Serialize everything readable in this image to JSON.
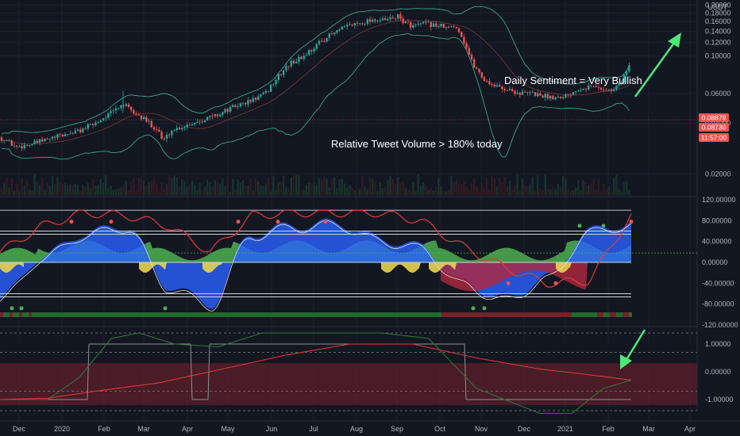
{
  "currency": "USDT",
  "price_badges": [
    {
      "label": "0.08879",
      "color": "#ef5350"
    },
    {
      "label": "0.08730",
      "color": "#ef5350"
    },
    {
      "label": "11:57:00",
      "color": "#ef5350"
    }
  ],
  "annotations": {
    "sentiment": "Daily Sentiment = Very Bullish",
    "tweets": "Relative Tweet Volume > 180% today"
  },
  "colors": {
    "background": "#131722",
    "up": "#26a69a",
    "down": "#ef5350",
    "band": "#3aa38c",
    "arrow": "#4ee77a",
    "osc_blue": "#2962ff",
    "osc_green": "#4caf50",
    "osc_yellow": "#e8d44d",
    "osc_red": "#b2283e"
  },
  "time_axis": [
    "Dec",
    "2020",
    "Feb",
    "Mar",
    "Apr",
    "May",
    "Jun",
    "Jul",
    "Aug",
    "Sep",
    "Oct",
    "Nov",
    "Dec",
    "2021",
    "Feb",
    "Mar",
    "Apr"
  ],
  "chart_data": [
    {
      "type": "line",
      "title": "",
      "y_scale": "log",
      "y_ticks": [
        "0.20000",
        "0.18000",
        "0.16000",
        "0.14000",
        "0.12000",
        "0.10000",
        "0.06000",
        "0.04000",
        "0.02000"
      ],
      "ylim": [
        0.015,
        0.21
      ],
      "x": [
        "Dec",
        "2020",
        "Feb",
        "Mar",
        "Apr",
        "May",
        "Jun",
        "Jul",
        "Aug",
        "Sep",
        "Oct",
        "Nov",
        "Dec",
        "2021",
        "Feb"
      ],
      "series": [
        {
          "values": [
            0.032,
            0.03,
            0.04,
            0.055,
            0.035,
            0.042,
            0.05,
            0.08,
            0.11,
            0.16,
            0.175,
            0.16,
            0.12,
            0.07,
            0.065
          ]
        }
      ],
      "last_price": 0.08879,
      "second_price": 0.0873
    },
    {
      "type": "area",
      "title": "",
      "y_ticks": [
        "120.00000",
        "80.00000",
        "40.00000",
        "0.00000",
        "-40.00000",
        "-80.00000",
        "-120.00000"
      ],
      "ylim": [
        -120,
        120
      ],
      "levels": [
        100,
        60,
        0,
        -60
      ],
      "series": [
        {
          "values": [
            -70,
            10,
            55,
            70,
            -45,
            -80,
            55,
            70,
            75,
            45,
            30,
            -40,
            -70,
            -30,
            60,
            75
          ]
        },
        {
          "values": [
            20,
            70,
            95,
            90,
            70,
            20,
            90,
            95,
            95,
            95,
            80,
            30,
            -10,
            -40,
            -35,
            90
          ]
        }
      ]
    },
    {
      "type": "line",
      "title": "",
      "y_ticks": [
        "1.00000",
        "0.00000",
        "-1.00000"
      ],
      "ylim": [
        -1.4,
        1.4
      ],
      "series": [
        {
          "values": [
            -1.0,
            -1.0,
            1.0,
            1.0,
            -1.0,
            1.0,
            1.0,
            1.0,
            1.0,
            1.0,
            1.0,
            1.0,
            -1.0,
            -1.0,
            -1.0
          ]
        },
        {
          "values": [
            -1.0,
            -0.9,
            -0.5,
            -0.2,
            0.0,
            0.4,
            0.8,
            1.0,
            1.0,
            0.8,
            0.4,
            0.2,
            0.1,
            0.0,
            -0.2
          ]
        }
      ]
    }
  ]
}
